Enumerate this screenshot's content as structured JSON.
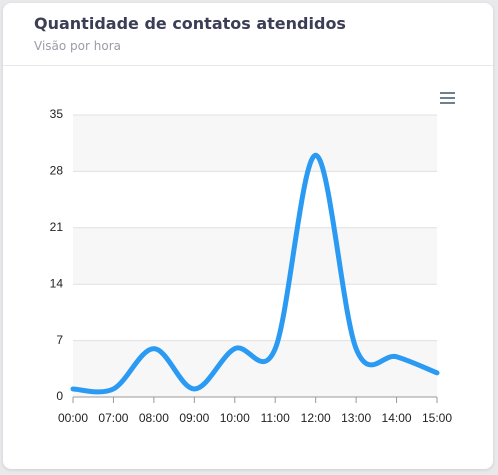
{
  "chart_data": {
    "type": "line",
    "title": "Quantidade de contatos atendidos",
    "subtitle": "Visão por hora",
    "categories": [
      "00:00",
      "07:00",
      "08:00",
      "09:00",
      "10:00",
      "11:00",
      "12:00",
      "13:00",
      "14:00",
      "15:00"
    ],
    "values": [
      1,
      1,
      6,
      1,
      6,
      6,
      30,
      6,
      5,
      3
    ],
    "color": "#2b9af3",
    "ylim": [
      0,
      35
    ],
    "yticks": [
      0,
      7,
      14,
      21,
      28,
      35
    ],
    "grid": true
  }
}
